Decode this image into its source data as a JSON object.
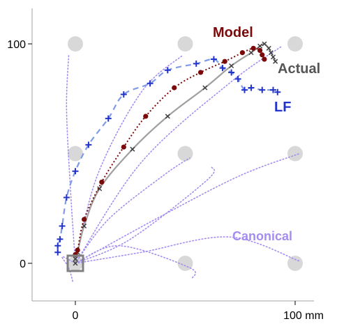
{
  "chart_data": {
    "type": "line",
    "title": "",
    "xlabel": "",
    "ylabel": "",
    "xlim": [
      -20,
      115
    ],
    "ylim": [
      -20,
      113
    ],
    "x_ticks": [
      {
        "value": 0,
        "label": "0"
      },
      {
        "value": 100,
        "label": "100 mm"
      }
    ],
    "y_ticks": [
      {
        "value": 0,
        "label": "0"
      },
      {
        "value": 100,
        "label": "100"
      }
    ],
    "grid": false,
    "colors": {
      "model": "#7a0a0a",
      "actual": "#808080",
      "lf": "#2233cc",
      "canonical": "#a58cf0",
      "targets": "#d8d8d8",
      "start_box": "#808080",
      "axis": "#a0a0a0"
    },
    "start_box": {
      "x": 0,
      "y": 0
    },
    "targets": [
      {
        "x": 0,
        "y": 0
      },
      {
        "x": 50,
        "y": 0
      },
      {
        "x": 100,
        "y": 0
      },
      {
        "x": 0,
        "y": 50
      },
      {
        "x": 50,
        "y": 50
      },
      {
        "x": 100,
        "y": 50
      },
      {
        "x": 0,
        "y": 100
      },
      {
        "x": 50,
        "y": 100
      },
      {
        "x": 100,
        "y": 100
      }
    ],
    "series": [
      {
        "name": "Model",
        "style": "dotted-dots",
        "points": [
          [
            0,
            4
          ],
          [
            1,
            6
          ],
          [
            4,
            20
          ],
          [
            12,
            37
          ],
          [
            22,
            53
          ],
          [
            32,
            67
          ],
          [
            45,
            80
          ],
          [
            57,
            87
          ],
          [
            68,
            92
          ],
          [
            76,
            96
          ],
          [
            81,
            98
          ],
          [
            84,
            97
          ],
          [
            85,
            95
          ],
          [
            86,
            93
          ]
        ]
      },
      {
        "name": "Actual",
        "style": "solid-x",
        "points": [
          [
            0,
            0
          ],
          [
            0,
            2
          ],
          [
            1,
            5
          ],
          [
            4,
            17
          ],
          [
            11,
            34
          ],
          [
            26,
            52
          ],
          [
            42,
            67
          ],
          [
            59,
            80
          ],
          [
            71,
            90
          ],
          [
            80,
            96
          ],
          [
            84,
            99
          ],
          [
            86,
            100
          ],
          [
            88,
            98
          ],
          [
            89,
            96
          ],
          [
            90,
            94
          ],
          [
            91,
            92
          ]
        ]
      },
      {
        "name": "LF",
        "style": "dashed-plus",
        "points": [
          [
            -8,
            5
          ],
          [
            -8,
            8
          ],
          [
            -7,
            11
          ],
          [
            -6,
            17
          ],
          [
            -4,
            30
          ],
          [
            0,
            42
          ],
          [
            6,
            54
          ],
          [
            15,
            66
          ],
          [
            22,
            77
          ],
          [
            34,
            82
          ],
          [
            42,
            88
          ],
          [
            55,
            91
          ],
          [
            63,
            93
          ],
          [
            67,
            89
          ],
          [
            71,
            87
          ],
          [
            74,
            84
          ],
          [
            77,
            79
          ],
          [
            80,
            80
          ],
          [
            85,
            79
          ],
          [
            90,
            79
          ],
          [
            92,
            78
          ]
        ]
      },
      {
        "name": "Canonical",
        "style": "dotted-fan",
        "paths": [
          [
            [
              0,
              0
            ],
            [
              -2,
              30
            ],
            [
              -4,
              70
            ],
            [
              -3,
              95
            ]
          ],
          [
            [
              0,
              0
            ],
            [
              10,
              40
            ],
            [
              30,
              78
            ],
            [
              49,
              95
            ]
          ],
          [
            [
              0,
              0
            ],
            [
              30,
              46
            ],
            [
              70,
              82
            ],
            [
              94,
              99
            ]
          ],
          [
            [
              0,
              0
            ],
            [
              15,
              20
            ],
            [
              40,
              40
            ],
            [
              52,
              48
            ]
          ],
          [
            [
              0,
              0
            ],
            [
              40,
              22
            ],
            [
              75,
              40
            ],
            [
              102,
              50
            ]
          ],
          [
            [
              0,
              0
            ],
            [
              20,
              8
            ],
            [
              52,
              -2
            ],
            [
              53,
              -7
            ]
          ],
          [
            [
              0,
              0
            ],
            [
              30,
              5
            ],
            [
              70,
              12
            ],
            [
              102,
              1
            ]
          ],
          [
            [
              0,
              0
            ],
            [
              -6,
              3
            ],
            [
              -3,
              -2
            ],
            [
              -1,
              -9
            ]
          ],
          [
            [
              0,
              0
            ],
            [
              25,
              11
            ],
            [
              60,
              38
            ],
            [
              62,
              44
            ]
          ]
        ]
      }
    ],
    "annotations": [
      {
        "text": "Model",
        "series": "Model"
      },
      {
        "text": "Actual",
        "series": "Actual"
      },
      {
        "text": "LF",
        "series": "LF"
      },
      {
        "text": "Canonical",
        "series": "Canonical"
      }
    ]
  }
}
